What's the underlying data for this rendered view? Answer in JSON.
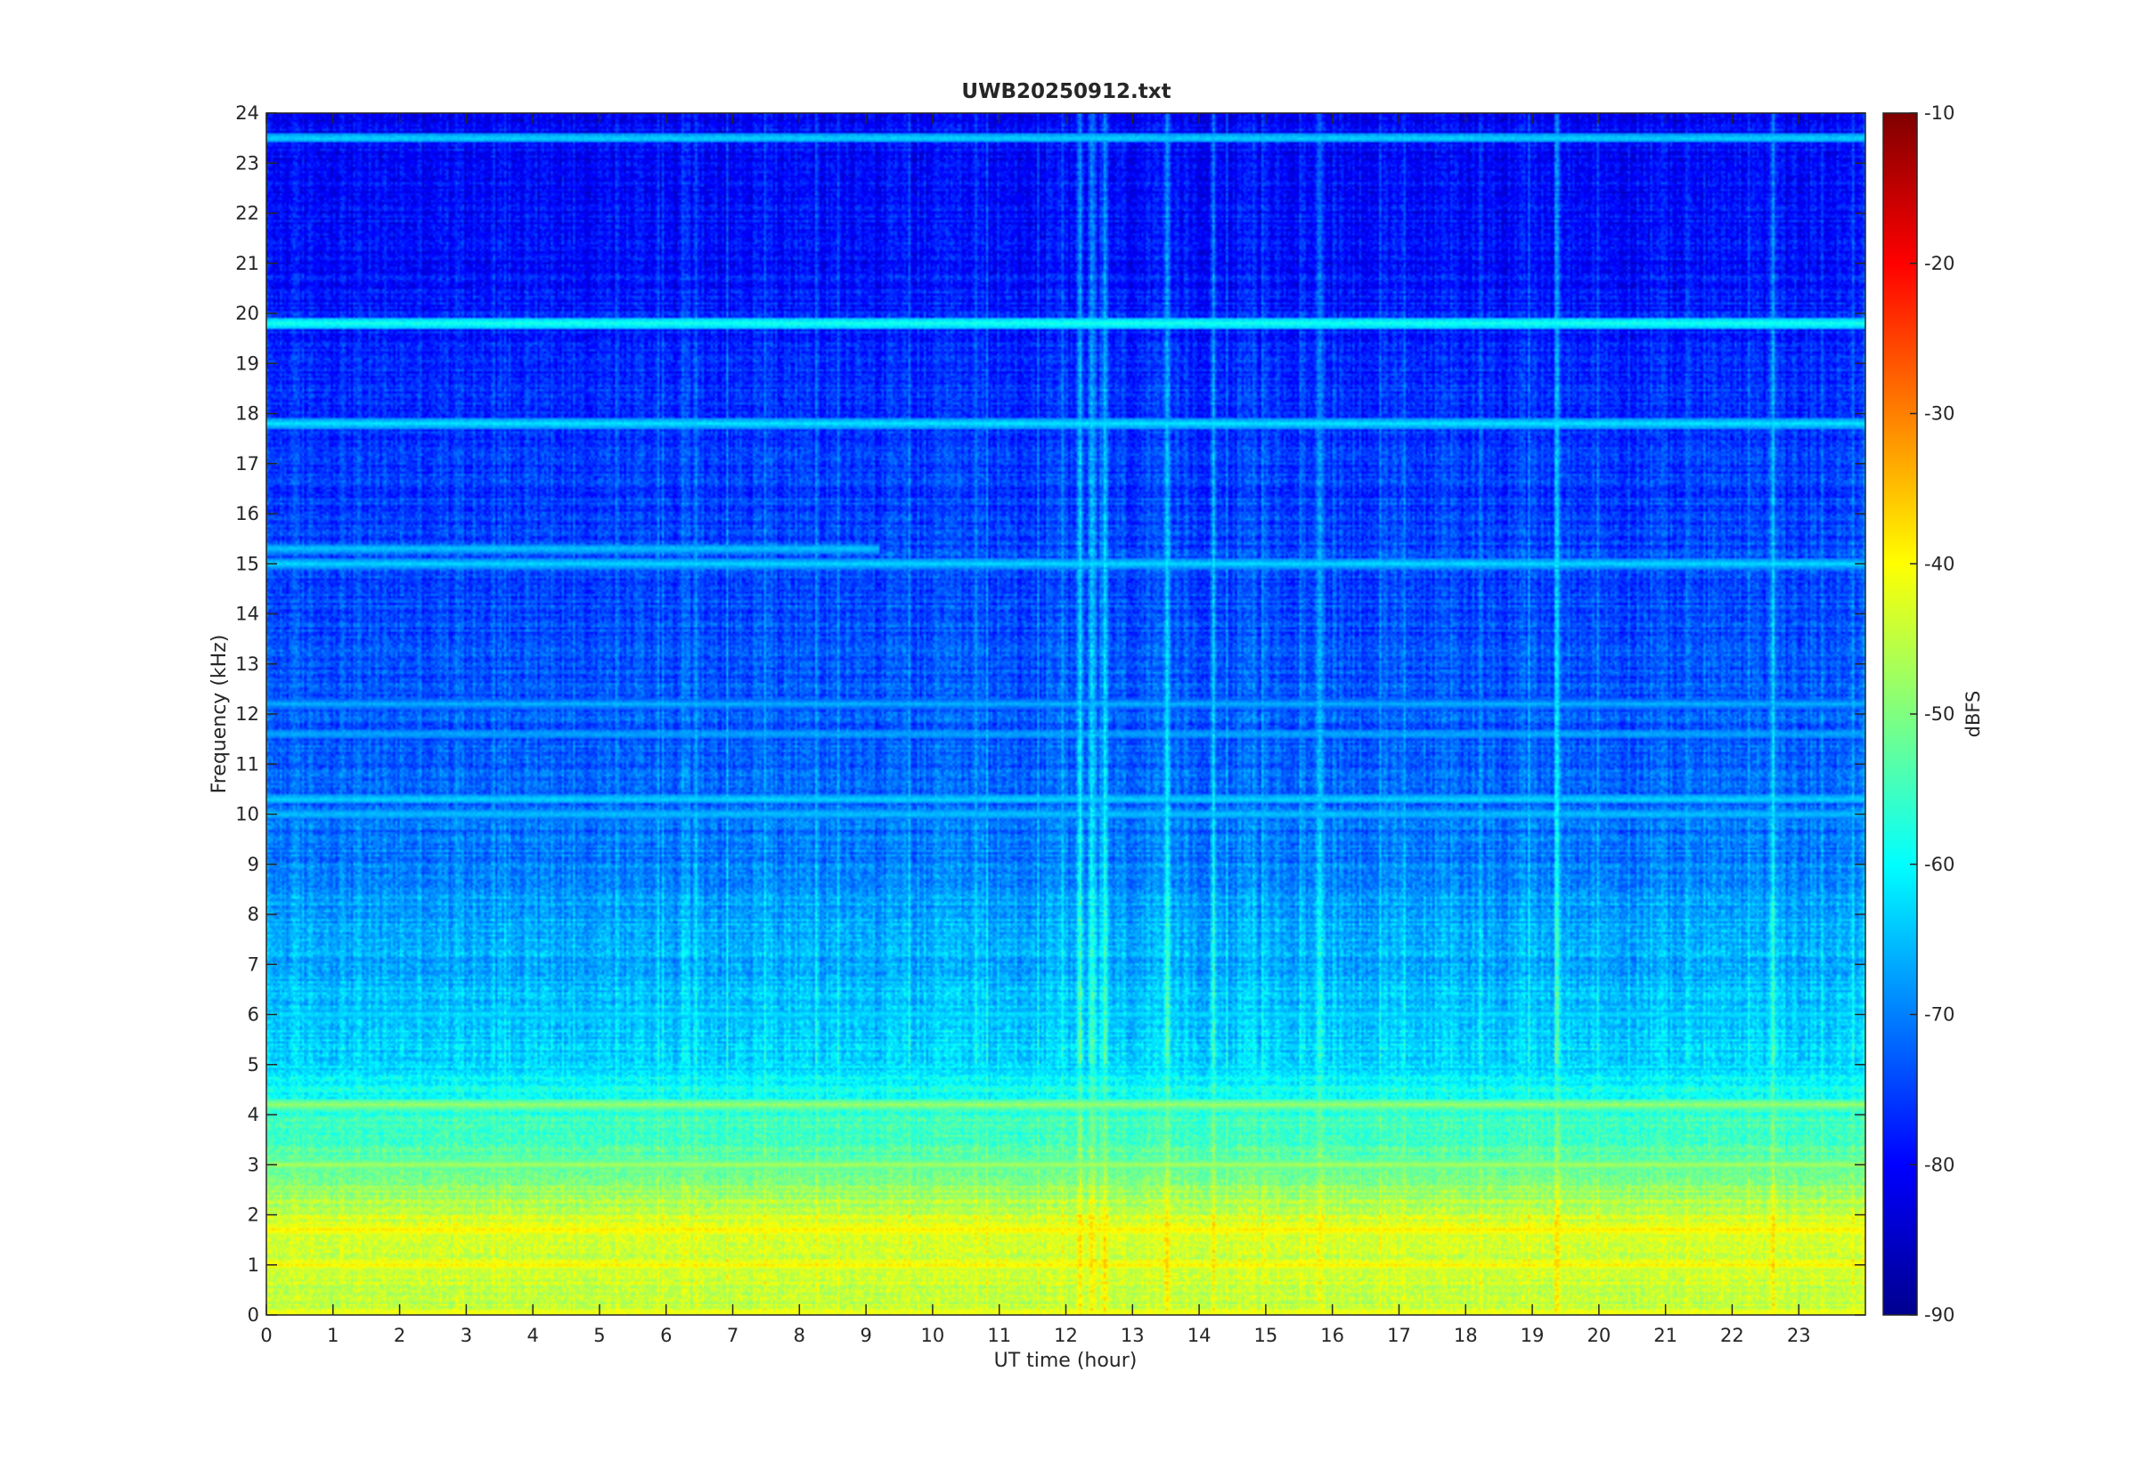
{
  "chart_data": {
    "type": "heatmap",
    "title": "UWB20250912.txt",
    "xlabel": "UT time (hour)",
    "ylabel": "Frequency (kHz)",
    "xlim": [
      0,
      24
    ],
    "ylim": [
      0,
      24
    ],
    "x_ticks": [
      "0",
      "1",
      "2",
      "3",
      "4",
      "5",
      "6",
      "7",
      "8",
      "9",
      "10",
      "11",
      "12",
      "13",
      "14",
      "15",
      "16",
      "17",
      "18",
      "19",
      "20",
      "21",
      "22",
      "23"
    ],
    "y_ticks": [
      "0",
      "1",
      "2",
      "3",
      "4",
      "5",
      "6",
      "7",
      "8",
      "9",
      "10",
      "11",
      "12",
      "13",
      "14",
      "15",
      "16",
      "17",
      "18",
      "19",
      "20",
      "21",
      "22",
      "23",
      "24"
    ],
    "colorbar": {
      "label": "dBFS",
      "range": [
        -90,
        -10
      ],
      "ticks": [
        "-90",
        "-80",
        "-70",
        "-60",
        "-50",
        "-40",
        "-30",
        "-20",
        "-10"
      ],
      "colormap": "jet"
    },
    "background_level_profile": [
      {
        "freq_khz": 0.0,
        "dbfs": -45
      },
      {
        "freq_khz": 1.0,
        "dbfs": -43
      },
      {
        "freq_khz": 2.0,
        "dbfs": -44
      },
      {
        "freq_khz": 3.0,
        "dbfs": -53
      },
      {
        "freq_khz": 4.0,
        "dbfs": -56
      },
      {
        "freq_khz": 5.0,
        "dbfs": -63
      },
      {
        "freq_khz": 6.0,
        "dbfs": -65
      },
      {
        "freq_khz": 8.0,
        "dbfs": -67
      },
      {
        "freq_khz": 10.0,
        "dbfs": -72
      },
      {
        "freq_khz": 14.0,
        "dbfs": -74
      },
      {
        "freq_khz": 18.0,
        "dbfs": -76
      },
      {
        "freq_khz": 21.0,
        "dbfs": -79
      },
      {
        "freq_khz": 24.0,
        "dbfs": -80
      }
    ],
    "spectral_lines": [
      {
        "freq_khz": 19.8,
        "dbfs": -58,
        "from_hour": 0,
        "to_hour": 24
      },
      {
        "freq_khz": 17.8,
        "dbfs": -62,
        "from_hour": 0,
        "to_hour": 24
      },
      {
        "freq_khz": 23.5,
        "dbfs": -63,
        "from_hour": 0,
        "to_hour": 24
      },
      {
        "freq_khz": 15.0,
        "dbfs": -63,
        "from_hour": 0,
        "to_hour": 24
      },
      {
        "freq_khz": 15.3,
        "dbfs": -64,
        "from_hour": 0,
        "to_hour": 9.2
      },
      {
        "freq_khz": 10.3,
        "dbfs": -63,
        "from_hour": 0,
        "to_hour": 24
      },
      {
        "freq_khz": 10.0,
        "dbfs": -64,
        "from_hour": 0,
        "to_hour": 24
      },
      {
        "freq_khz": 12.2,
        "dbfs": -66,
        "from_hour": 0,
        "to_hour": 24
      },
      {
        "freq_khz": 11.6,
        "dbfs": -66,
        "from_hour": 0,
        "to_hour": 24
      },
      {
        "freq_khz": 6.0,
        "dbfs": -62,
        "from_hour": 0,
        "to_hour": 24
      },
      {
        "freq_khz": 4.2,
        "dbfs": -48,
        "from_hour": 0,
        "to_hour": 24
      },
      {
        "freq_khz": 3.0,
        "dbfs": -47,
        "from_hour": 0,
        "to_hour": 24
      },
      {
        "freq_khz": 1.7,
        "dbfs": -38,
        "from_hour": 0,
        "to_hour": 24
      },
      {
        "freq_khz": 1.0,
        "dbfs": -39,
        "from_hour": 0,
        "to_hour": 24
      },
      {
        "freq_khz": 0.05,
        "dbfs": -40,
        "from_hour": 0,
        "to_hour": 24
      }
    ],
    "broadband_events_hour": [
      12.2,
      12.4,
      12.55,
      13.5,
      14.2,
      15.8,
      19.35,
      22.6
    ]
  }
}
